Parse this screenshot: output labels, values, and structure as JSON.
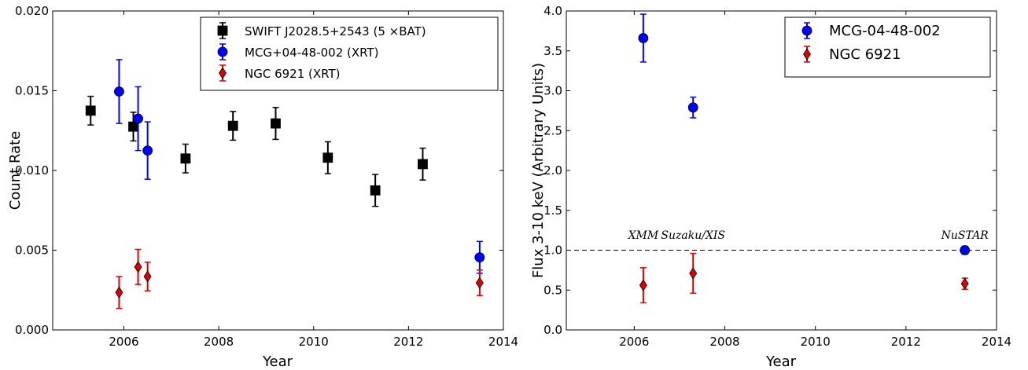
{
  "chart_data": [
    {
      "type": "scatter",
      "xlabel": "Year",
      "ylabel": "Count Rate",
      "xlim": [
        2004.5,
        2014
      ],
      "ylim": [
        0.0,
        0.02
      ],
      "xticks": [
        "2006",
        "2008",
        "2010",
        "2012",
        "2014"
      ],
      "yticks": [
        "0.000",
        "0.005",
        "0.010",
        "0.015",
        "0.020"
      ],
      "legend_position": "top-right",
      "series": [
        {
          "name": "SWIFT J2028.5+2543 (5 ×BAT)",
          "color": "#000000",
          "marker": "square",
          "points": [
            {
              "x": 2005.3,
              "y": 0.01375,
              "err": 0.0009
            },
            {
              "x": 2006.2,
              "y": 0.01275,
              "err": 0.0009
            },
            {
              "x": 2007.3,
              "y": 0.01075,
              "err": 0.0009
            },
            {
              "x": 2008.3,
              "y": 0.0128,
              "err": 0.0009
            },
            {
              "x": 2009.2,
              "y": 0.01295,
              "err": 0.001
            },
            {
              "x": 2010.3,
              "y": 0.0108,
              "err": 0.001
            },
            {
              "x": 2011.3,
              "y": 0.00875,
              "err": 0.001
            },
            {
              "x": 2012.3,
              "y": 0.0104,
              "err": 0.001
            }
          ]
        },
        {
          "name": "MCG+04-48-002 (XRT)",
          "color": "#0000ff",
          "marker": "circle",
          "points": [
            {
              "x": 2005.9,
              "y": 0.01495,
              "err": 0.002
            },
            {
              "x": 2006.3,
              "y": 0.01325,
              "err": 0.002
            },
            {
              "x": 2006.5,
              "y": 0.01125,
              "err": 0.0018
            },
            {
              "x": 2013.5,
              "y": 0.00455,
              "err": 0.001
            }
          ]
        },
        {
          "name": "NGC 6921 (XRT)",
          "color": "#dd0000",
          "marker": "diamond",
          "points": [
            {
              "x": 2005.9,
              "y": 0.00235,
              "err": 0.001
            },
            {
              "x": 2006.3,
              "y": 0.00395,
              "err": 0.0011
            },
            {
              "x": 2006.5,
              "y": 0.00335,
              "err": 0.0009
            },
            {
              "x": 2013.5,
              "y": 0.00295,
              "err": 0.0008
            }
          ]
        }
      ]
    },
    {
      "type": "scatter",
      "xlabel": "Year",
      "ylabel": "Flux 3-10 keV (Arbitrary Units)",
      "xlim": [
        2004.5,
        2014
      ],
      "ylim": [
        0.0,
        4.0
      ],
      "xticks": [
        "2006",
        "2008",
        "2010",
        "2012",
        "2014"
      ],
      "yticks": [
        "0.0",
        "0.5",
        "1.0",
        "1.5",
        "2.0",
        "2.5",
        "3.0",
        "3.5",
        "4.0"
      ],
      "legend_position": "top-right",
      "reference_line": {
        "y": 1.0,
        "style": "dashed"
      },
      "annotations": [
        {
          "text": "XMM",
          "x": 2006.2,
          "y": 1.2
        },
        {
          "text": "Suzaku/XIS",
          "x": 2007.3,
          "y": 1.2
        },
        {
          "text": "NuSTAR",
          "x": 2013.3,
          "y": 1.2
        }
      ],
      "series": [
        {
          "name": "MCG-04-48-002",
          "color": "#0000ff",
          "marker": "circle",
          "points": [
            {
              "x": 2006.2,
              "y": 3.66,
              "err": 0.3
            },
            {
              "x": 2007.3,
              "y": 2.79,
              "err": 0.13
            },
            {
              "x": 2013.3,
              "y": 1.0,
              "err": 0.05
            }
          ]
        },
        {
          "name": "NGC 6921",
          "color": "#dd0000",
          "marker": "diamond",
          "points": [
            {
              "x": 2006.2,
              "y": 0.56,
              "err": 0.22
            },
            {
              "x": 2007.3,
              "y": 0.71,
              "err": 0.25
            },
            {
              "x": 2013.3,
              "y": 0.58,
              "err": 0.07
            }
          ]
        }
      ]
    }
  ]
}
